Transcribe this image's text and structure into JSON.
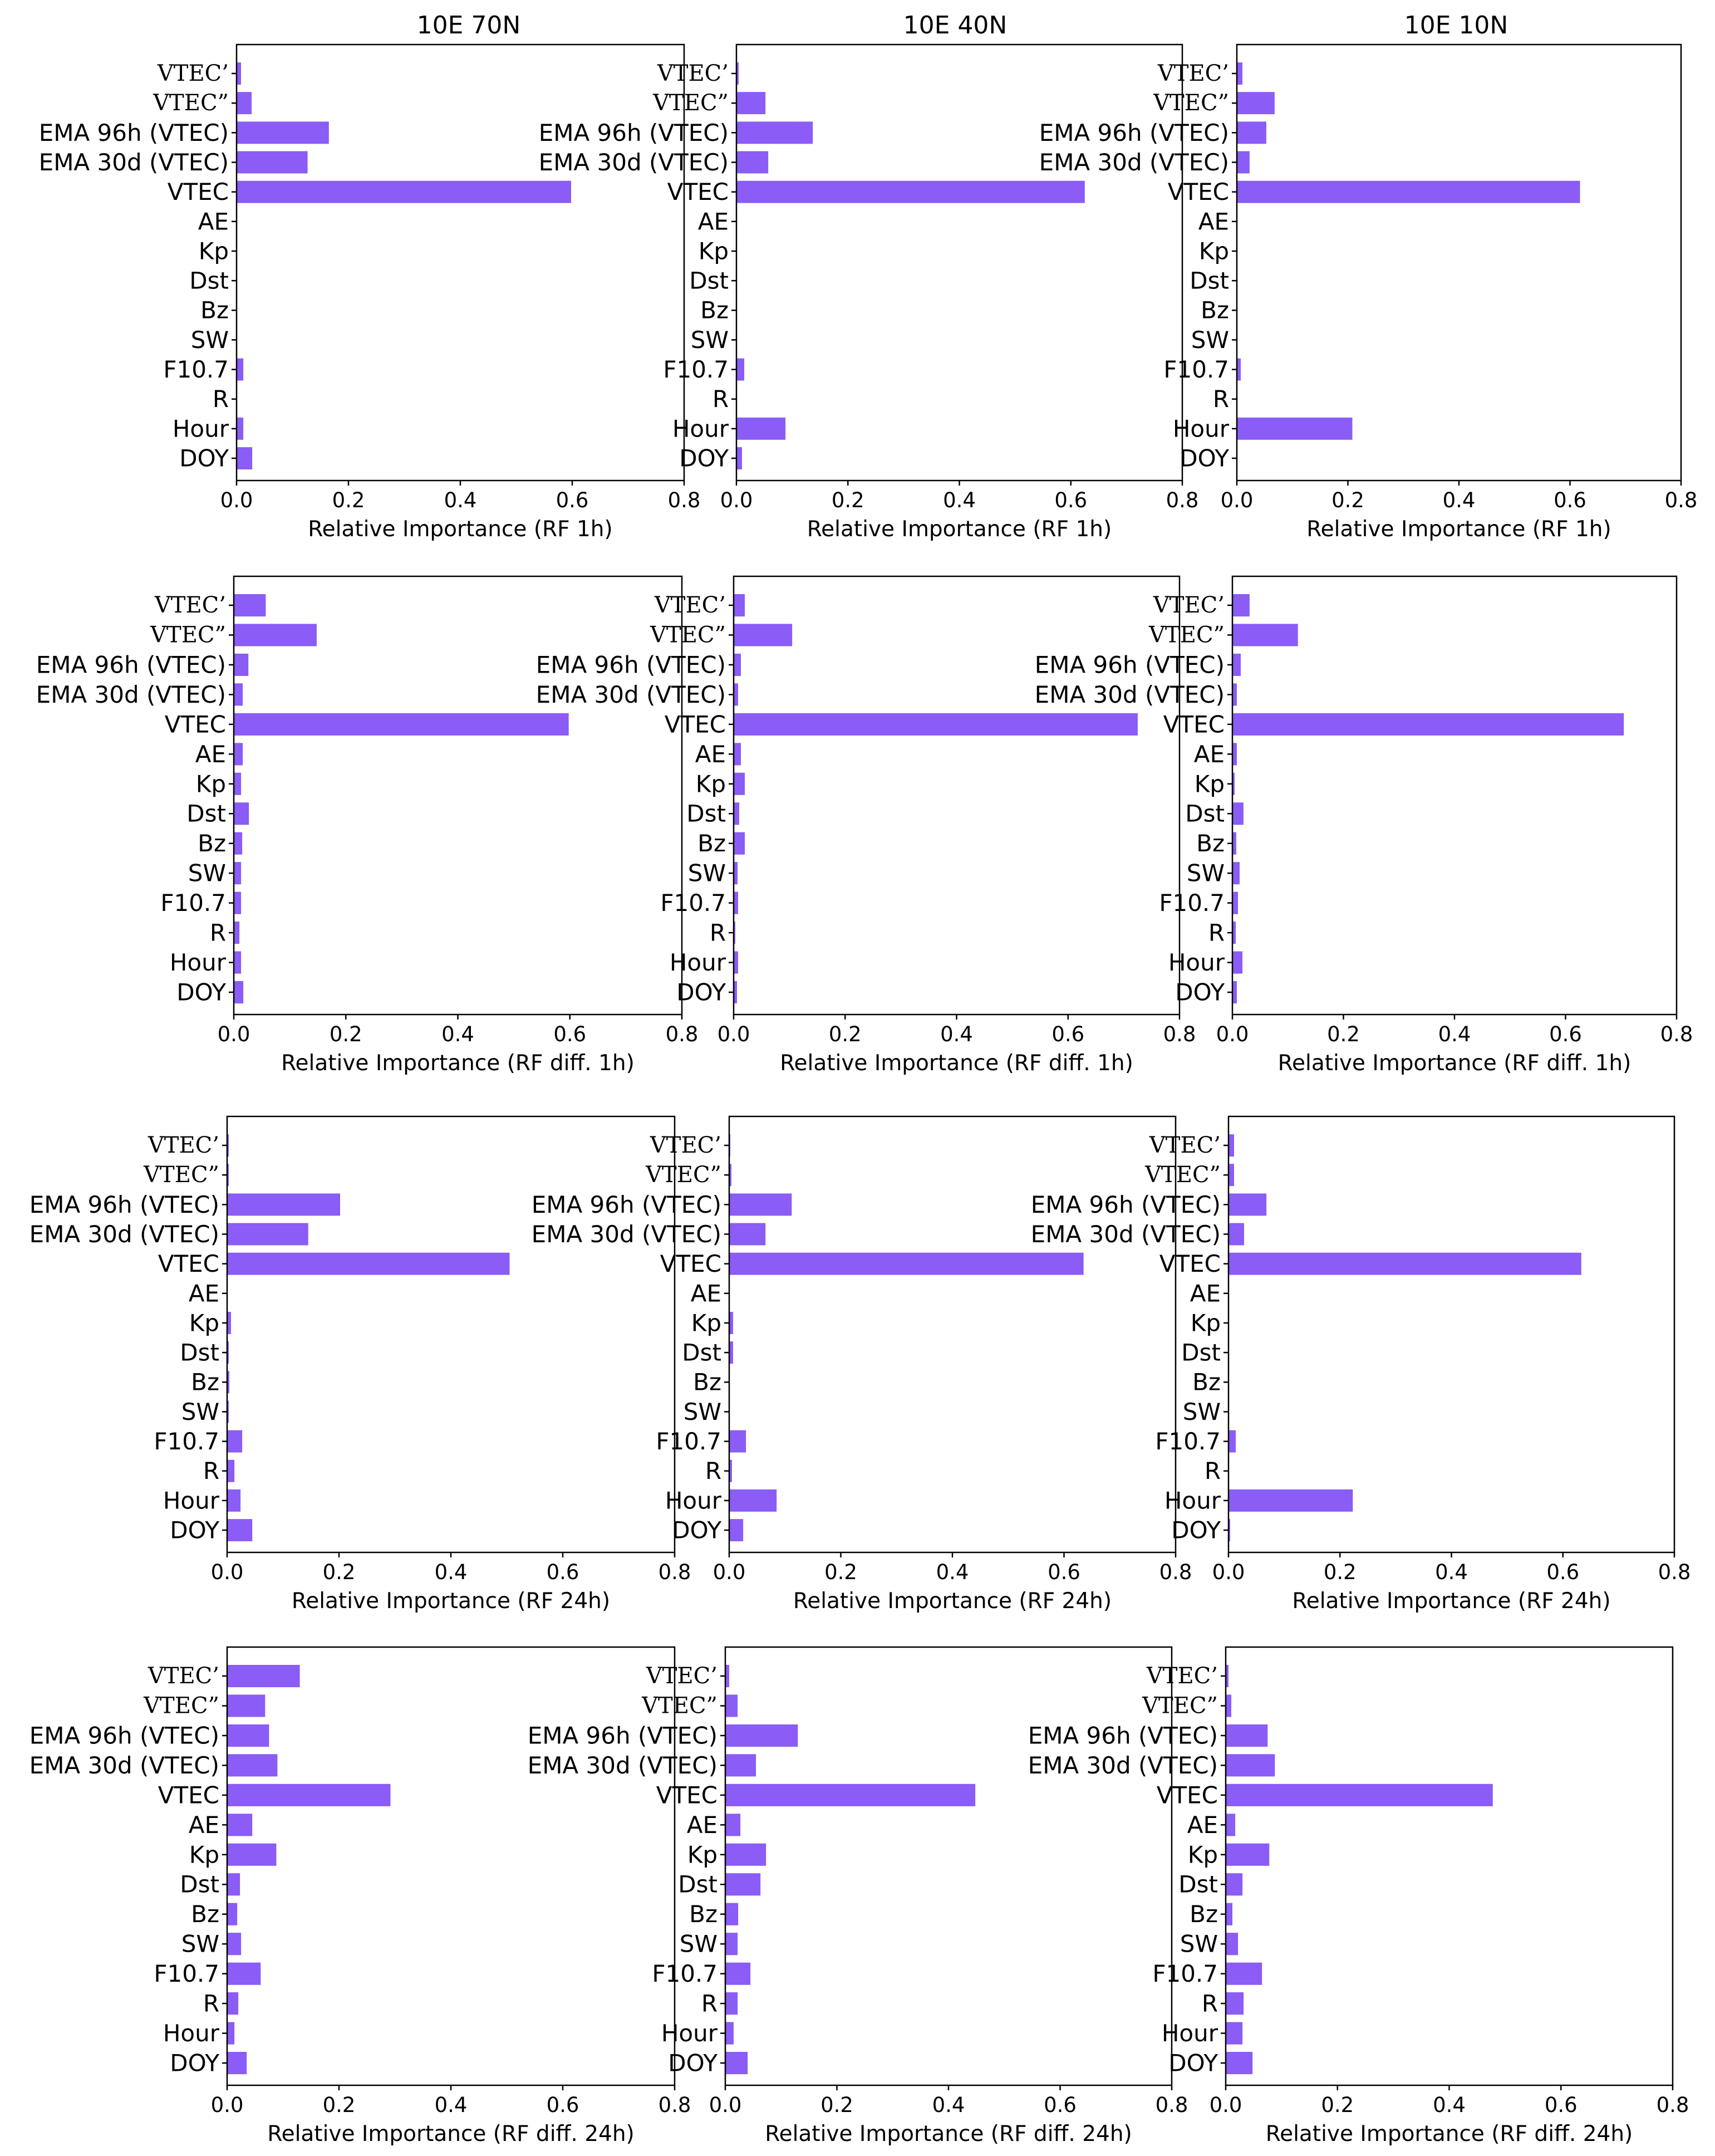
{
  "column_titles": [
    "10E 70N",
    "10E 40N",
    "10E 10N"
  ],
  "colors": {
    "bar": "#8b5cf6"
  },
  "chart_data": [
    {
      "type": "bar",
      "orientation": "horizontal",
      "title": "10E 70N",
      "xlabel": "Relative Importance (RF 1h)",
      "xlim": [
        0,
        0.8
      ],
      "xticks": [
        "0.0",
        "0.2",
        "0.4",
        "0.6",
        "0.8"
      ],
      "categories": [
        "VTEC’",
        "VTEC”",
        "EMA 96h (VTEC)",
        "EMA 30d (VTEC)",
        "VTEC",
        "AE",
        "Kp",
        "Dst",
        "Bz",
        "SW",
        "F10.7",
        "R",
        "Hour",
        "DOY"
      ],
      "values": [
        0.008,
        0.027,
        0.165,
        0.127,
        0.598,
        0,
        0,
        0,
        0,
        0,
        0.012,
        0,
        0.012,
        0.028
      ]
    },
    {
      "type": "bar",
      "orientation": "horizontal",
      "title": "10E 40N",
      "xlabel": "Relative Importance (RF 1h)",
      "xlim": [
        0,
        0.8
      ],
      "xticks": [
        "0.0",
        "0.2",
        "0.4",
        "0.6",
        "0.8"
      ],
      "categories": [
        "VTEC’",
        "VTEC”",
        "EMA 96h (VTEC)",
        "EMA 30d (VTEC)",
        "VTEC",
        "AE",
        "Kp",
        "Dst",
        "Bz",
        "SW",
        "F10.7",
        "R",
        "Hour",
        "DOY"
      ],
      "values": [
        0.004,
        0.052,
        0.137,
        0.057,
        0.625,
        0,
        0,
        0,
        0,
        0,
        0.014,
        0,
        0.088,
        0.01
      ]
    },
    {
      "type": "bar",
      "orientation": "horizontal",
      "title": "10E 10N",
      "xlabel": "Relative Importance (RF 1h)",
      "xlim": [
        0,
        0.8
      ],
      "xticks": [
        "0.0",
        "0.2",
        "0.4",
        "0.6",
        "0.8"
      ],
      "categories": [
        "VTEC’",
        "VTEC”",
        "EMA 96h (VTEC)",
        "EMA 30d (VTEC)",
        "VTEC",
        "AE",
        "Kp",
        "Dst",
        "Bz",
        "SW",
        "F10.7",
        "R",
        "Hour",
        "DOY"
      ],
      "values": [
        0.01,
        0.068,
        0.053,
        0.023,
        0.618,
        0,
        0,
        0,
        0,
        0,
        0.007,
        0,
        0.208,
        0
      ]
    },
    {
      "type": "bar",
      "orientation": "horizontal",
      "title": "",
      "xlabel": "Relative Importance (RF diff. 1h)",
      "xlim": [
        0,
        0.8
      ],
      "xticks": [
        "0.0",
        "0.2",
        "0.4",
        "0.6",
        "0.8"
      ],
      "categories": [
        "VTEC’",
        "VTEC”",
        "EMA 96h (VTEC)",
        "EMA 30d (VTEC)",
        "VTEC",
        "AE",
        "Kp",
        "Dst",
        "Bz",
        "SW",
        "F10.7",
        "R",
        "Hour",
        "DOY"
      ],
      "values": [
        0.057,
        0.148,
        0.026,
        0.016,
        0.598,
        0.016,
        0.013,
        0.027,
        0.015,
        0.013,
        0.013,
        0.01,
        0.013,
        0.017
      ]
    },
    {
      "type": "bar",
      "orientation": "horizontal",
      "title": "",
      "xlabel": "Relative Importance (RF diff. 1h)",
      "xlim": [
        0,
        0.8
      ],
      "xticks": [
        "0.0",
        "0.2",
        "0.4",
        "0.6",
        "0.8"
      ],
      "categories": [
        "VTEC’",
        "VTEC”",
        "EMA 96h (VTEC)",
        "EMA 30d (VTEC)",
        "VTEC",
        "AE",
        "Kp",
        "Dst",
        "Bz",
        "SW",
        "F10.7",
        "R",
        "Hour",
        "DOY"
      ],
      "values": [
        0.02,
        0.105,
        0.013,
        0.008,
        0.725,
        0.013,
        0.02,
        0.01,
        0.02,
        0.007,
        0.008,
        0.003,
        0.008,
        0.006
      ]
    },
    {
      "type": "bar",
      "orientation": "horizontal",
      "title": "",
      "xlabel": "Relative Importance (RF diff. 1h)",
      "xlim": [
        0,
        0.8
      ],
      "xticks": [
        "0.0",
        "0.2",
        "0.4",
        "0.6",
        "0.8"
      ],
      "categories": [
        "VTEC’",
        "VTEC”",
        "EMA 96h (VTEC)",
        "EMA 30d (VTEC)",
        "VTEC",
        "AE",
        "Kp",
        "Dst",
        "Bz",
        "SW",
        "F10.7",
        "R",
        "Hour",
        "DOY"
      ],
      "values": [
        0.031,
        0.118,
        0.015,
        0.008,
        0.705,
        0.008,
        0.004,
        0.02,
        0.007,
        0.013,
        0.01,
        0.006,
        0.018,
        0.008
      ]
    },
    {
      "type": "bar",
      "orientation": "horizontal",
      "title": "",
      "xlabel": "Relative Importance (RF 24h)",
      "xlim": [
        0,
        0.8
      ],
      "xticks": [
        "0.0",
        "0.2",
        "0.4",
        "0.6",
        "0.8"
      ],
      "categories": [
        "VTEC’",
        "VTEC”",
        "EMA 96h (VTEC)",
        "EMA 30d (VTEC)",
        "VTEC",
        "AE",
        "Kp",
        "Dst",
        "Bz",
        "SW",
        "F10.7",
        "R",
        "Hour",
        "DOY"
      ],
      "values": [
        0.003,
        0.003,
        0.202,
        0.145,
        0.505,
        0,
        0.007,
        0.003,
        0.004,
        0.003,
        0.027,
        0.013,
        0.024,
        0.045
      ]
    },
    {
      "type": "bar",
      "orientation": "horizontal",
      "title": "",
      "xlabel": "Relative Importance (RF 24h)",
      "xlim": [
        0,
        0.8
      ],
      "xticks": [
        "0.0",
        "0.2",
        "0.4",
        "0.6",
        "0.8"
      ],
      "categories": [
        "VTEC’",
        "VTEC”",
        "EMA 96h (VTEC)",
        "EMA 30d (VTEC)",
        "VTEC",
        "AE",
        "Kp",
        "Dst",
        "Bz",
        "SW",
        "F10.7",
        "R",
        "Hour",
        "DOY"
      ],
      "values": [
        0.002,
        0.004,
        0.112,
        0.065,
        0.635,
        0,
        0.007,
        0.007,
        0,
        0,
        0.03,
        0.005,
        0.085,
        0.025
      ]
    },
    {
      "type": "bar",
      "orientation": "horizontal",
      "title": "",
      "xlabel": "Relative Importance (RF 24h)",
      "xlim": [
        0,
        0.8
      ],
      "xticks": [
        "0.0",
        "0.2",
        "0.4",
        "0.6",
        "0.8"
      ],
      "categories": [
        "VTEC’",
        "VTEC”",
        "EMA 96h (VTEC)",
        "EMA 30d (VTEC)",
        "VTEC",
        "AE",
        "Kp",
        "Dst",
        "Bz",
        "SW",
        "F10.7",
        "R",
        "Hour",
        "DOY"
      ],
      "values": [
        0.01,
        0.01,
        0.068,
        0.028,
        0.633,
        0,
        0,
        0,
        0,
        0,
        0.013,
        0,
        0.223,
        0.003
      ]
    },
    {
      "type": "bar",
      "orientation": "horizontal",
      "title": "",
      "xlabel": "Relative Importance (RF diff. 24h)",
      "xlim": [
        0,
        0.8
      ],
      "xticks": [
        "0.0",
        "0.2",
        "0.4",
        "0.6",
        "0.8"
      ],
      "categories": [
        "VTEC’",
        "VTEC”",
        "EMA 96h (VTEC)",
        "EMA 30d (VTEC)",
        "VTEC",
        "AE",
        "Kp",
        "Dst",
        "Bz",
        "SW",
        "F10.7",
        "R",
        "Hour",
        "DOY"
      ],
      "values": [
        0.13,
        0.068,
        0.075,
        0.09,
        0.292,
        0.045,
        0.088,
        0.023,
        0.018,
        0.025,
        0.06,
        0.02,
        0.013,
        0.035
      ]
    },
    {
      "type": "bar",
      "orientation": "horizontal",
      "title": "",
      "xlabel": "Relative Importance (RF diff. 24h)",
      "xlim": [
        0,
        0.8
      ],
      "xticks": [
        "0.0",
        "0.2",
        "0.4",
        "0.6",
        "0.8"
      ],
      "categories": [
        "VTEC’",
        "VTEC”",
        "EMA 96h (VTEC)",
        "EMA 30d (VTEC)",
        "VTEC",
        "AE",
        "Kp",
        "Dst",
        "Bz",
        "SW",
        "F10.7",
        "R",
        "Hour",
        "DOY"
      ],
      "values": [
        0.007,
        0.022,
        0.13,
        0.055,
        0.448,
        0.027,
        0.073,
        0.063,
        0.023,
        0.022,
        0.045,
        0.022,
        0.015,
        0.04
      ]
    },
    {
      "type": "bar",
      "orientation": "horizontal",
      "title": "",
      "xlabel": "Relative Importance (RF diff. 24h)",
      "xlim": [
        0,
        0.8
      ],
      "xticks": [
        "0.0",
        "0.2",
        "0.4",
        "0.6",
        "0.8"
      ],
      "categories": [
        "VTEC’",
        "VTEC”",
        "EMA 96h (VTEC)",
        "EMA 30d (VTEC)",
        "VTEC",
        "AE",
        "Kp",
        "Dst",
        "Bz",
        "SW",
        "F10.7",
        "R",
        "Hour",
        "DOY"
      ],
      "values": [
        0.005,
        0.01,
        0.075,
        0.088,
        0.478,
        0.017,
        0.078,
        0.03,
        0.012,
        0.022,
        0.065,
        0.032,
        0.03,
        0.048
      ]
    }
  ]
}
